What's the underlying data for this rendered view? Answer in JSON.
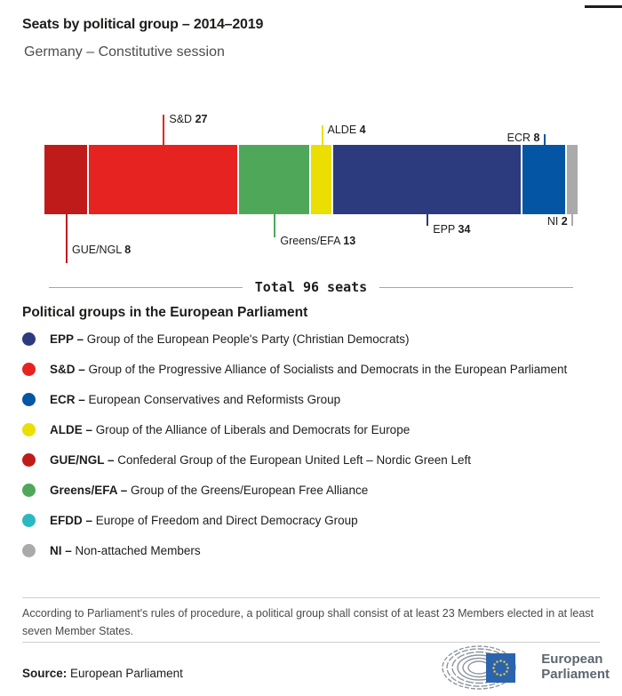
{
  "header": {
    "title": "Seats by political group – 2014–2019",
    "subtitle": "Germany – Constitutive session"
  },
  "chart_data": {
    "type": "stacked-bar",
    "title": "Seats by political group – 2014–2019",
    "subtitle": "Germany – Constitutive session",
    "total_seats": 96,
    "total_label": "Total 96 seats",
    "legend_position": "below",
    "series": [
      {
        "name": "GUE/NGL",
        "seats": 8,
        "color": "#c01b1b",
        "callout": {
          "side": "below",
          "line": 55,
          "label_dy": 33,
          "label_side": "right"
        }
      },
      {
        "name": "S&D",
        "seats": 27,
        "color": "#e62320",
        "callout": {
          "side": "above",
          "line": 34,
          "label_dy": -2,
          "label_side": "right"
        }
      },
      {
        "name": "Greens/EFA",
        "seats": 13,
        "color": "#4fa85a",
        "callout": {
          "side": "below",
          "line": 26,
          "label_dy": 23,
          "label_side": "right"
        }
      },
      {
        "name": "ALDE",
        "seats": 4,
        "color": "#eadf00",
        "callout": {
          "side": "above",
          "line": 22,
          "label_dy": -2,
          "label_side": "right"
        }
      },
      {
        "name": "EPP",
        "seats": 34,
        "color": "#2b3b7e",
        "callout": {
          "side": "below",
          "line": 13,
          "label_dy": 10,
          "label_side": "right"
        }
      },
      {
        "name": "ECR",
        "seats": 8,
        "color": "#0455a4",
        "callout": {
          "side": "above",
          "line": 12,
          "label_dy": -3,
          "label_side": "left"
        }
      },
      {
        "name": "NI",
        "seats": 2,
        "color": "#aaaaaa",
        "callout": {
          "side": "below",
          "line": 13,
          "label_dy": 1,
          "label_side": "left"
        }
      }
    ]
  },
  "legend": {
    "heading": "Political groups in the European Parliament",
    "items": [
      {
        "abbr": "EPP –",
        "desc": "Group of the European People's Party (Christian Democrats)",
        "color": "#2b3b7e"
      },
      {
        "abbr": "S&D –",
        "desc": "Group of the Progressive Alliance of Socialists and Democrats in the European Parliament",
        "color": "#e62320"
      },
      {
        "abbr": "ECR –",
        "desc": "European Conservatives and Reformists Group",
        "color": "#0455a4"
      },
      {
        "abbr": "ALDE –",
        "desc": "Group of the Alliance of Liberals and Democrats for Europe",
        "color": "#eadf00"
      },
      {
        "abbr": "GUE/NGL –",
        "desc": "Confederal Group of the European United Left – Nordic Green Left",
        "color": "#c01b1b"
      },
      {
        "abbr": "Greens/EFA –",
        "desc": "Group of the Greens/European Free Alliance",
        "color": "#4fa85a"
      },
      {
        "abbr": "EFDD –",
        "desc": "Europe of Freedom and Direct Democracy Group",
        "color": "#2ab9c1"
      },
      {
        "abbr": "NI –",
        "desc": "Non-attached Members",
        "color": "#aaaaaa"
      }
    ]
  },
  "footnote": "According to Parliament's rules of procedure, a political group shall consist of at least 23 Members elected in at least seven Member States.",
  "source": {
    "label": "Source:",
    "value": "European Parliament"
  },
  "logo": {
    "line1": "European",
    "line2": "Parliament"
  }
}
